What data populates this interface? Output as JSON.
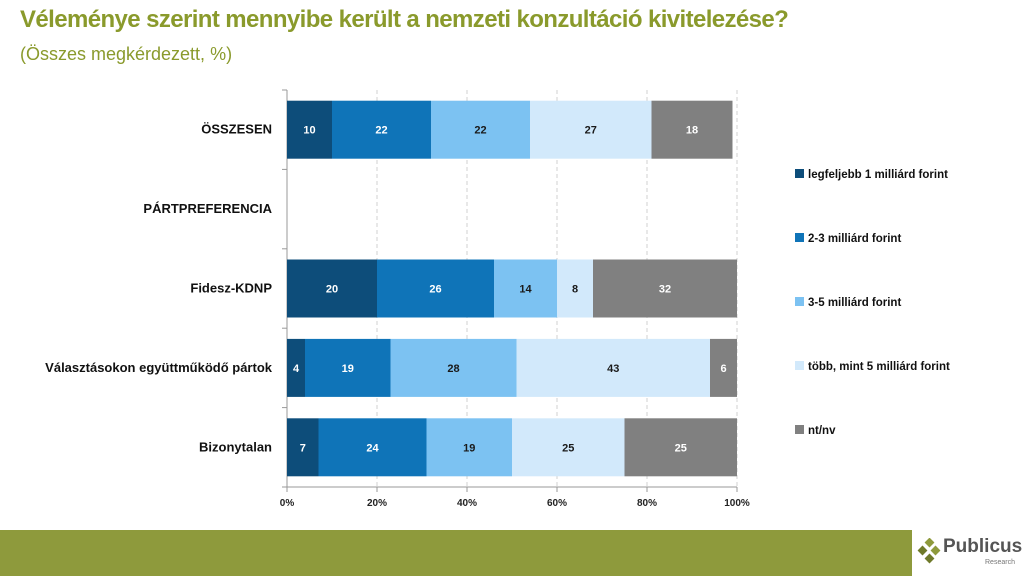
{
  "header": {
    "title": "Véleménye szerint mennyibe került a nemzeti konzultáció kivitelezése?",
    "subtitle": "(Összes megkérdezett, %)"
  },
  "logo": {
    "name": "Publicus",
    "tagline": "Research"
  },
  "colors": {
    "title": "#8a9a2c",
    "footer": "#8e9a3c"
  },
  "chart_data": {
    "type": "bar",
    "orientation": "horizontal",
    "stacked": "percent",
    "title": "Véleménye szerint mennyibe került a nemzeti konzultáció kivitelezése?",
    "subtitle": "(Összes megkérdezett, %)",
    "categories": [
      "ÖSSZESEN",
      "PÁRTPREFERENCIA",
      "Fidesz-KDNP",
      "Választásokon együttműködő pártok",
      "Bizonytalan"
    ],
    "series": [
      {
        "name": "legfeljebb 1 milliárd forint",
        "color": "#0d4d7a",
        "label_color": "#ffffff",
        "values": [
          10,
          null,
          20,
          4,
          7
        ]
      },
      {
        "name": "2-3 milliárd forint",
        "color": "#0f74b8",
        "label_color": "#ffffff",
        "values": [
          22,
          null,
          26,
          19,
          24
        ]
      },
      {
        "name": "3-5 milliárd forint",
        "color": "#7cc2f2",
        "label_color": "#1a1a1a",
        "values": [
          22,
          null,
          14,
          28,
          19
        ]
      },
      {
        "name": "több, mint 5 milliárd forint",
        "color": "#d2e9fb",
        "label_color": "#1a1a1a",
        "values": [
          27,
          null,
          8,
          43,
          25
        ]
      },
      {
        "name": "nt/nv",
        "color": "#808080",
        "label_color": "#ffffff",
        "values": [
          18,
          null,
          32,
          6,
          25
        ]
      }
    ],
    "x_ticks": [
      "0%",
      "20%",
      "40%",
      "60%",
      "80%",
      "100%"
    ],
    "xlim": [
      0,
      100
    ],
    "grid": "vertical dashed",
    "legend_position": "right"
  }
}
